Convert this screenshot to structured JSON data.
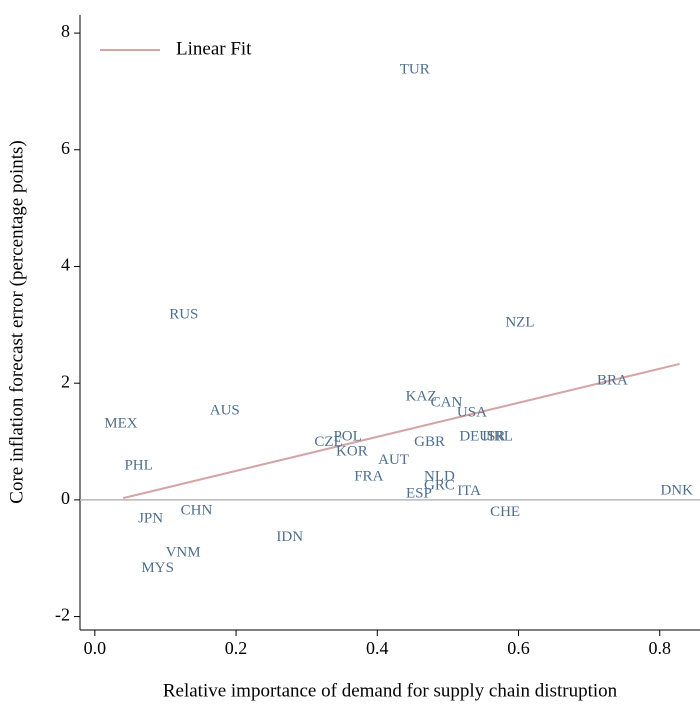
{
  "chart_data": {
    "type": "scatter",
    "x_label": "Relative importance of demand for supply chain distruption",
    "y_label": "Core inflation forecast error (percentage points)",
    "labels": [
      "TUR",
      "NZL",
      "RUS",
      "BRA",
      "KAZ",
      "CAN",
      "USA",
      "AUS",
      "MEX",
      "DEU",
      "ISR",
      "IRL",
      "GBR",
      "POL",
      "CZE",
      "KOR",
      "AUT",
      "PHL",
      "FRA",
      "NLD",
      "GRC",
      "ESP",
      "ITA",
      "DNK",
      "CHE",
      "CHN",
      "JPN",
      "IDN",
      "VNM",
      "MYS"
    ],
    "x": [
      0.453,
      0.602,
      0.126,
      0.733,
      0.462,
      0.498,
      0.534,
      0.184,
      0.037,
      0.538,
      0.565,
      0.575,
      0.474,
      0.358,
      0.331,
      0.364,
      0.423,
      0.062,
      0.388,
      0.488,
      0.488,
      0.459,
      0.53,
      0.824,
      0.581,
      0.144,
      0.079,
      0.276,
      0.125,
      0.089
    ],
    "y": [
      7.37,
      3.03,
      3.17,
      2.04,
      1.76,
      1.66,
      1.49,
      1.52,
      1.3,
      1.08,
      1.08,
      1.08,
      0.98,
      1.08,
      0.98,
      0.82,
      0.67,
      0.58,
      0.39,
      0.39,
      0.24,
      0.1,
      0.14,
      0.15,
      -0.22,
      -0.19,
      -0.33,
      -0.65,
      -0.91,
      -1.18
    ],
    "label_color": "#4f6f8f",
    "fit": {
      "name": "Linear Fit",
      "color": "#d4a5a5",
      "x": [
        0.04,
        0.828
      ],
      "y": [
        0.03,
        2.33
      ]
    },
    "reference_line": {
      "y": 0,
      "color": "#b8b8b8"
    },
    "xlim": [
      -0.021,
      0.857
    ],
    "ylim": [
      -2.23,
      8.31
    ],
    "xticks": [
      {
        "value": 0,
        "label": "0.0"
      },
      0.2,
      0.4,
      0.6,
      0.8
    ],
    "yticks": [
      -2,
      0,
      2,
      4,
      6,
      8
    ],
    "legend": "top-left"
  }
}
